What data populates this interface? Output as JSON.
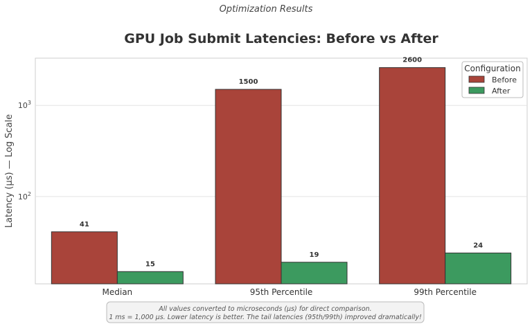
{
  "header": {
    "suptitle": "Optimization Results"
  },
  "chart_data": {
    "type": "bar",
    "title": "GPU Job Submit Latencies: Before vs After",
    "xlabel": "",
    "ylabel": "Latency (µs) — Log Scale",
    "yscale": "log",
    "ylim": [
      11,
      3300
    ],
    "yticks": [
      {
        "base": "10",
        "exp": "2",
        "value": 100
      },
      {
        "base": "10",
        "exp": "3",
        "value": 1000
      }
    ],
    "grid": true,
    "categories": [
      "Median",
      "95th Percentile",
      "99th Percentile"
    ],
    "series": [
      {
        "name": "Before",
        "values": [
          41,
          1500,
          2600
        ],
        "labels": [
          "41",
          "1500",
          "2600"
        ],
        "color": "#a9443a"
      },
      {
        "name": "After",
        "values": [
          15,
          19,
          24
        ],
        "labels": [
          "15",
          "19",
          "24"
        ],
        "color": "#3c9a5f"
      }
    ],
    "legend": {
      "title": "Configuration",
      "placement": "top-right"
    }
  },
  "note": {
    "line1": "All values converted to microseconds (µs) for direct comparison.",
    "line2": "1 ms = 1,000 µs. Lower latency is better. The tail latencies (95th/99th) improved dramatically!"
  }
}
